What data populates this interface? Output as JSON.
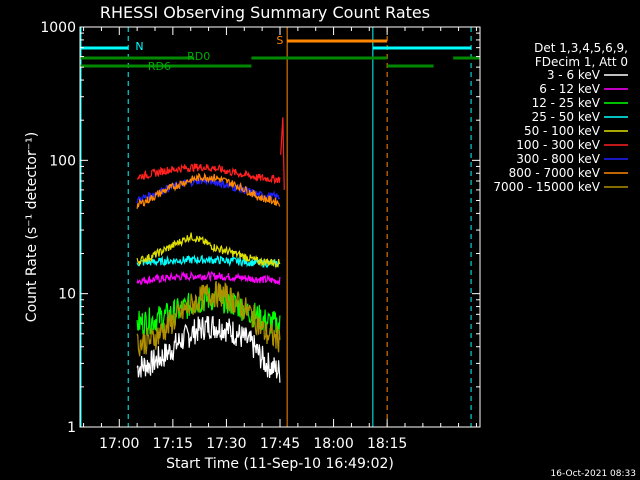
{
  "chart_data": {
    "type": "line",
    "title": "RHESSI Observing Summary Count Rates",
    "xlabel": "Start Time (11-Sep-10 16:49:02)",
    "ylabel": "Count Rate (s⁻¹ detector⁻¹)",
    "x_unit": "minutes after 16:49:02",
    "xlim": [
      0,
      112
    ],
    "ylim": [
      1,
      1000
    ],
    "yscale": "log",
    "x_ticks": [
      {
        "v": 11,
        "label": "17:00"
      },
      {
        "v": 26,
        "label": "17:15"
      },
      {
        "v": 41,
        "label": "17:30"
      },
      {
        "v": 56,
        "label": "17:45"
      },
      {
        "v": 71,
        "label": "18:00"
      },
      {
        "v": 86,
        "label": "18:15"
      }
    ],
    "y_ticks": [
      {
        "v": 1,
        "label": "1"
      },
      {
        "v": 10,
        "label": "10"
      },
      {
        "v": 100,
        "label": "100"
      },
      {
        "v": 1000,
        "label": "1000"
      }
    ],
    "legend_header": [
      "Det 1,3,4,5,6,9,",
      "FDecim 1, Att 0"
    ],
    "legend_position": "right",
    "series": [
      {
        "name": "3 - 6 keV",
        "color": "#ffffff",
        "points": [
          [
            16,
            2.8
          ],
          [
            20,
            3.0
          ],
          [
            24,
            3.5
          ],
          [
            28,
            4.4
          ],
          [
            32,
            5.2
          ],
          [
            36,
            5.8
          ],
          [
            40,
            5.6
          ],
          [
            44,
            5.0
          ],
          [
            48,
            4.2
          ],
          [
            52,
            3.0
          ],
          [
            56,
            2.6
          ]
        ]
      },
      {
        "name": "6 - 12 keV",
        "color": "#ff00ff",
        "points": [
          [
            16,
            12.5
          ],
          [
            22,
            12.9
          ],
          [
            28,
            13.4
          ],
          [
            34,
            13.6
          ],
          [
            40,
            13.5
          ],
          [
            46,
            13.1
          ],
          [
            52,
            12.7
          ],
          [
            56,
            12.5
          ]
        ]
      },
      {
        "name": "12 - 25 keV",
        "color": "#00ff00",
        "points": [
          [
            16,
            6.0
          ],
          [
            20,
            6.3
          ],
          [
            24,
            6.8
          ],
          [
            28,
            7.5
          ],
          [
            32,
            8.5
          ],
          [
            36,
            9.2
          ],
          [
            40,
            9.0
          ],
          [
            44,
            8.2
          ],
          [
            48,
            7.2
          ],
          [
            52,
            6.2
          ],
          [
            56,
            5.8
          ]
        ]
      },
      {
        "name": "25 - 50 keV",
        "color": "#00ffff",
        "points": [
          [
            16,
            17.0
          ],
          [
            22,
            17.4
          ],
          [
            28,
            17.8
          ],
          [
            34,
            18.0
          ],
          [
            40,
            17.8
          ],
          [
            46,
            17.3
          ],
          [
            52,
            16.9
          ],
          [
            56,
            16.8
          ]
        ]
      },
      {
        "name": "50 - 100 keV",
        "color": "#e0e000",
        "points": [
          [
            16,
            17.5
          ],
          [
            20,
            19
          ],
          [
            24,
            21.5
          ],
          [
            28,
            24.5
          ],
          [
            31,
            27
          ],
          [
            34,
            25
          ],
          [
            38,
            22
          ],
          [
            42,
            20.5
          ],
          [
            46,
            19
          ],
          [
            50,
            17.5
          ],
          [
            56,
            17.0
          ]
        ]
      },
      {
        "name": "100 - 300 keV",
        "color": "#ff2020",
        "points": [
          [
            16,
            75
          ],
          [
            20,
            79
          ],
          [
            24,
            84
          ],
          [
            30,
            88
          ],
          [
            34,
            89
          ],
          [
            38,
            87
          ],
          [
            42,
            82
          ],
          [
            46,
            78
          ],
          [
            50,
            74
          ],
          [
            56,
            72
          ]
        ]
      },
      {
        "name": "300 - 800 keV",
        "color": "#2020ff",
        "points": [
          [
            16,
            50
          ],
          [
            20,
            55
          ],
          [
            24,
            61
          ],
          [
            30,
            68
          ],
          [
            34,
            71
          ],
          [
            38,
            69
          ],
          [
            42,
            64
          ],
          [
            46,
            60
          ],
          [
            50,
            55
          ],
          [
            56,
            53
          ]
        ]
      },
      {
        "name": "800 - 7000 keV",
        "color": "#ff8800",
        "points": [
          [
            16,
            46
          ],
          [
            20,
            52
          ],
          [
            24,
            60
          ],
          [
            30,
            70
          ],
          [
            34,
            75
          ],
          [
            38,
            74
          ],
          [
            42,
            68
          ],
          [
            46,
            61
          ],
          [
            50,
            53
          ],
          [
            56,
            48
          ]
        ]
      },
      {
        "name": "7000 - 15000 keV",
        "color": "#b09000",
        "points": [
          [
            16,
            4.2
          ],
          [
            20,
            4.5
          ],
          [
            24,
            5.5
          ],
          [
            28,
            7.0
          ],
          [
            32,
            8.5
          ],
          [
            36,
            10
          ],
          [
            40,
            9.8
          ],
          [
            44,
            8.5
          ],
          [
            48,
            7.0
          ],
          [
            52,
            5.0
          ],
          [
            56,
            4.5
          ]
        ]
      }
    ],
    "flag_labels": {
      "night": "N",
      "saa": "S",
      "rd0": "RD0",
      "rd6": "RD6"
    },
    "footer_date": "16-Oct-2021 08:33"
  }
}
